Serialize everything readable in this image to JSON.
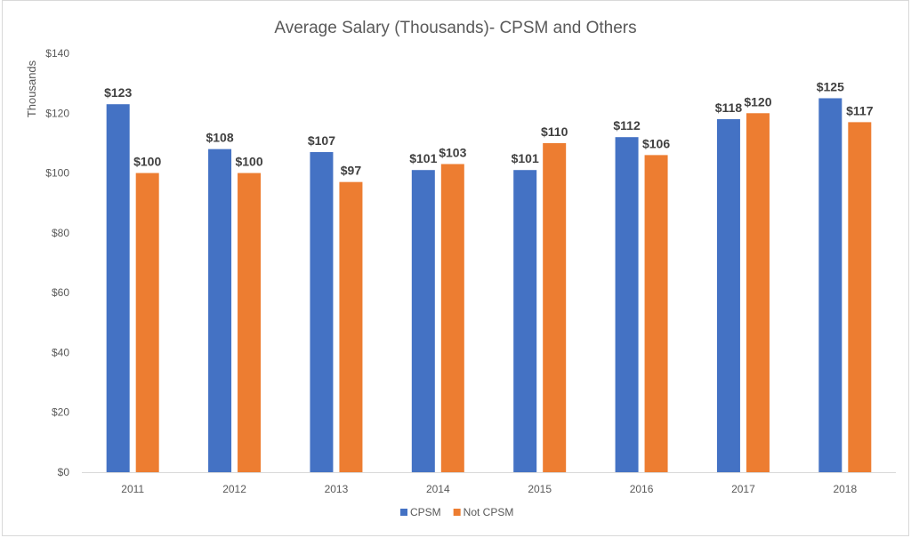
{
  "chart_data": {
    "type": "bar",
    "title": "Average Salary  (Thousands)- CPSM and Others",
    "xlabel": "",
    "ylabel": "Thousands",
    "categories": [
      "2011",
      "2012",
      "2013",
      "2014",
      "2015",
      "2016",
      "2017",
      "2018"
    ],
    "series": [
      {
        "name": "CPSM",
        "color": "#4472C4",
        "values": [
          123,
          108,
          107,
          101,
          101,
          112,
          118,
          125
        ],
        "labels": [
          "$123",
          "$108",
          "$107",
          "$101",
          "$101",
          "$112",
          "$118",
          "$125"
        ]
      },
      {
        "name": "Not CPSM",
        "color": "#ED7D31",
        "values": [
          100,
          100,
          97,
          103,
          110,
          106,
          120,
          117
        ],
        "labels": [
          "$100",
          "$100",
          "$97",
          "$103",
          "$110",
          "$106",
          "$120",
          "$117"
        ]
      }
    ],
    "ylim": [
      0,
      140
    ],
    "yticks": [
      0,
      20,
      40,
      60,
      80,
      100,
      120,
      140
    ],
    "ytick_labels": [
      "$0",
      "$20",
      "$40",
      "$60",
      "$80",
      "$100",
      "$120",
      "$140"
    ],
    "grid": false,
    "legend": "bottom-center"
  }
}
